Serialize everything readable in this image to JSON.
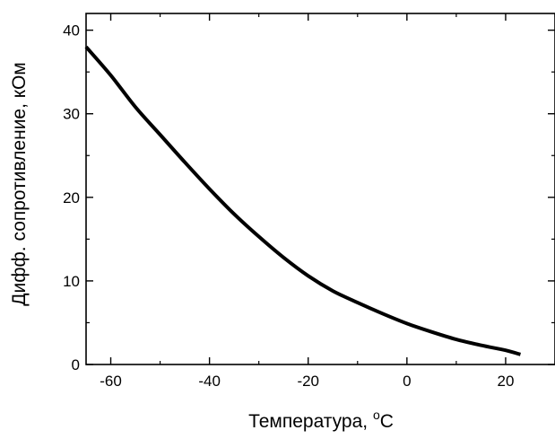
{
  "chart_data": {
    "type": "line",
    "title": "",
    "xlabel": "Температура, ",
    "xlabel_degree": "o",
    "xlabel_unit": "C",
    "ylabel": "Дифф. сопротивление, кОм",
    "xlim": [
      -65,
      30
    ],
    "ylim": [
      0,
      42
    ],
    "xticks": [
      -60,
      -40,
      -20,
      0,
      20
    ],
    "yticks": [
      0,
      10,
      20,
      30,
      40
    ],
    "grid": false,
    "legend": "none",
    "series": [
      {
        "color": "#000000",
        "x": [
          -65,
          -60,
          -55,
          -50,
          -45,
          -40,
          -35,
          -30,
          -25,
          -20,
          -15,
          -10,
          -5,
          0,
          5,
          10,
          15,
          20,
          23
        ],
        "y": [
          38.0,
          34.6,
          30.8,
          27.5,
          24.2,
          21.0,
          18.0,
          15.3,
          12.8,
          10.6,
          8.8,
          7.4,
          6.1,
          4.9,
          3.9,
          3.0,
          2.3,
          1.7,
          1.2
        ]
      }
    ]
  }
}
